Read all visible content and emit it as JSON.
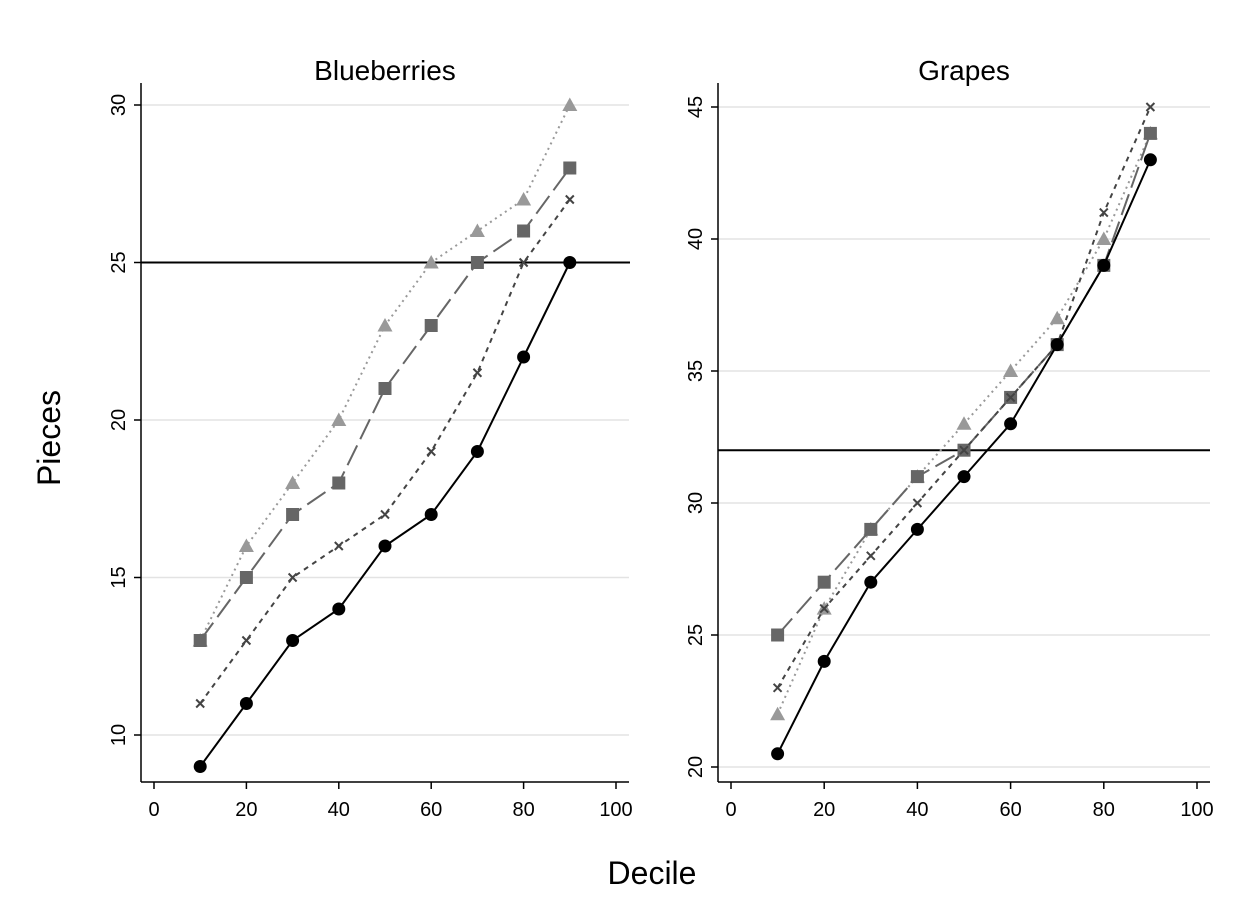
{
  "figure": {
    "ylabel": "Pieces",
    "xlabel": "Decile"
  },
  "chart_data": [
    {
      "type": "line",
      "title": "Blueberries",
      "xlabel": "Decile",
      "ylabel": "Pieces",
      "xlim": [
        0,
        100
      ],
      "ylim": [
        9,
        30
      ],
      "xticks": [
        "0",
        "20",
        "40",
        "60",
        "80",
        "100"
      ],
      "yticks": [
        "10",
        "15",
        "20",
        "25",
        "30"
      ],
      "grid": "horizontal",
      "reference_line": 25,
      "x": [
        10,
        20,
        30,
        40,
        50,
        60,
        70,
        80,
        90
      ],
      "series": [
        {
          "values": [
            13,
            16,
            18,
            20,
            23,
            25,
            26,
            27,
            30
          ],
          "marker": "triangle",
          "line": "dotted",
          "color": "#999999"
        },
        {
          "values": [
            13,
            15,
            17,
            18,
            21,
            23,
            25,
            26,
            28
          ],
          "marker": "square",
          "line": "long-dash",
          "color": "#666666"
        },
        {
          "values": [
            11,
            13,
            15,
            16,
            17,
            19,
            21.5,
            25,
            27
          ],
          "marker": "x",
          "line": "short-dash",
          "color": "#444444"
        },
        {
          "values": [
            9,
            11,
            13,
            14,
            16,
            17,
            19,
            22,
            25
          ],
          "marker": "circle",
          "line": "solid",
          "color": "#000000"
        }
      ]
    },
    {
      "type": "line",
      "title": "Grapes",
      "xlabel": "Decile",
      "ylabel": "Pieces",
      "xlim": [
        0,
        100
      ],
      "ylim": [
        20,
        45
      ],
      "xticks": [
        "0",
        "20",
        "40",
        "60",
        "80",
        "100"
      ],
      "yticks": [
        "20",
        "25",
        "30",
        "35",
        "40",
        "45"
      ],
      "grid": "horizontal",
      "reference_line": 32,
      "x": [
        10,
        20,
        30,
        40,
        50,
        60,
        70,
        80,
        90
      ],
      "series": [
        {
          "values": [
            22,
            26,
            29,
            31,
            33,
            35,
            37,
            40,
            44
          ],
          "marker": "triangle",
          "line": "dotted",
          "color": "#999999"
        },
        {
          "values": [
            25,
            27,
            29,
            31,
            32,
            34,
            36,
            39,
            44
          ],
          "marker": "square",
          "line": "long-dash",
          "color": "#666666"
        },
        {
          "values": [
            23,
            26,
            28,
            30,
            32,
            34,
            36,
            41,
            45
          ],
          "marker": "x",
          "line": "short-dash",
          "color": "#444444"
        },
        {
          "values": [
            20.5,
            24,
            27,
            29,
            31,
            33,
            36,
            39,
            43
          ],
          "marker": "circle",
          "line": "solid",
          "color": "#000000"
        }
      ]
    }
  ]
}
